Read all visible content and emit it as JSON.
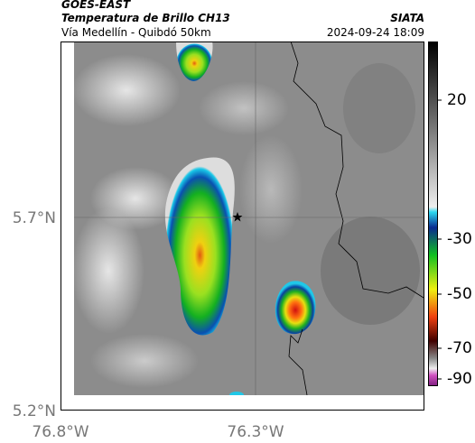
{
  "header": {
    "satellite": "GOES-EAST",
    "product": "Temperatura de Brillo CH13",
    "source": "SIATA",
    "location": "Vía Medellín - Quibdó 50km",
    "datetime": "2024-09-24 18:09"
  },
  "map": {
    "lat_labels": [
      "5.7°N",
      "5.2°N"
    ],
    "lon_labels": [
      "76.8°W",
      "76.3°W"
    ]
  },
  "colorbar": {
    "ticks": [
      20,
      -30,
      -50,
      -70,
      -90
    ]
  }
}
